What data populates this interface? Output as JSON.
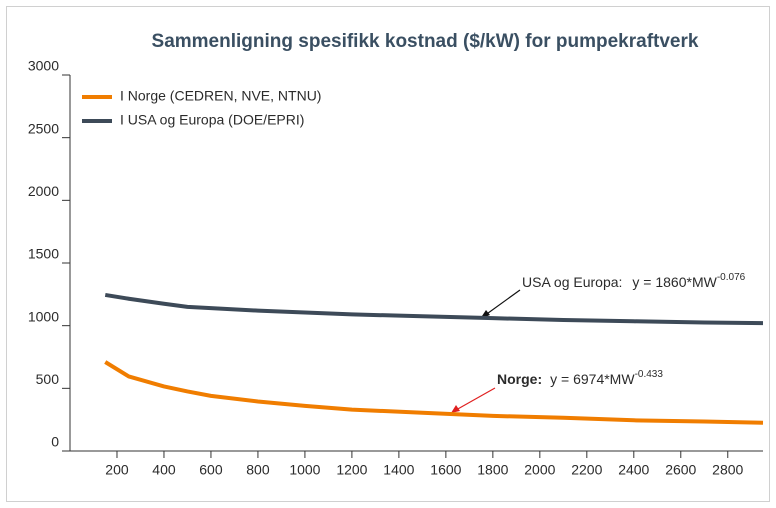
{
  "chart_data": {
    "type": "line",
    "title": "Sammenligning spesifikk kostnad ($/kW) for pumpekraftverk",
    "x": [
      150,
      250,
      400,
      500,
      600,
      800,
      1000,
      1200,
      1500,
      1800,
      2100,
      2400,
      2700,
      2950
    ],
    "series": [
      {
        "name": "I Norge (CEDREN, NVE, NTNU)",
        "color": "#f07d00",
        "values": [
          710,
          595,
          515,
          475,
          440,
          395,
          360,
          330,
          305,
          280,
          265,
          245,
          235,
          225
        ]
      },
      {
        "name": "I USA og Europa (DOE/EPRI)",
        "color": "#3d4a58",
        "values": [
          1245,
          1215,
          1175,
          1150,
          1140,
          1120,
          1105,
          1090,
          1075,
          1060,
          1045,
          1035,
          1025,
          1020
        ]
      }
    ],
    "xlim": [
      0,
      2950
    ],
    "xticks": [
      200,
      400,
      600,
      800,
      1000,
      1200,
      1400,
      1600,
      1800,
      2000,
      2200,
      2400,
      2600,
      2800
    ],
    "ylim": [
      0,
      3000
    ],
    "yticks": [
      0,
      500,
      1000,
      1500,
      2000,
      2500,
      3000
    ],
    "grid": false,
    "legend": "top-left",
    "annotations": [
      {
        "label": "USA og Europa:",
        "formula": "y = 1860*MW",
        "exponent": "-0.076"
      },
      {
        "label": "Norge:",
        "formula": "y = 6974*MW",
        "exponent": "-0.433"
      }
    ]
  }
}
